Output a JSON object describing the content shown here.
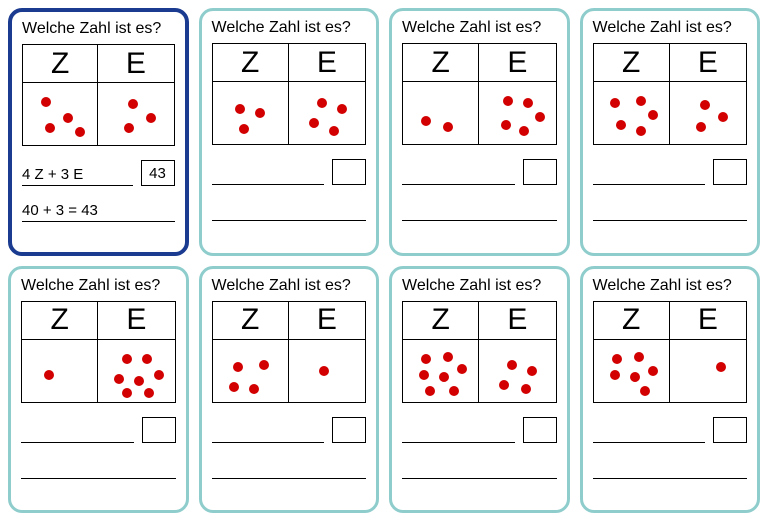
{
  "title": "Welche Zahl ist es?",
  "headers": {
    "tens": "Z",
    "ones": "E"
  },
  "dot_color": "#d20000",
  "border_teal": "#8fcdcd",
  "border_blue": "#1a3b8f",
  "cards": [
    {
      "highlight": true,
      "tens_dots": [
        [
          18,
          14
        ],
        [
          40,
          30
        ],
        [
          22,
          40
        ],
        [
          52,
          44
        ]
      ],
      "ones_dots": [
        [
          30,
          16
        ],
        [
          48,
          30
        ],
        [
          26,
          40
        ]
      ],
      "answer_text": "4 Z + 3 E",
      "answer_box": "43",
      "equation": "40 + 3 = 43"
    },
    {
      "highlight": false,
      "tens_dots": [
        [
          22,
          22
        ],
        [
          42,
          26
        ],
        [
          26,
          42
        ]
      ],
      "ones_dots": [
        [
          28,
          16
        ],
        [
          48,
          22
        ],
        [
          20,
          36
        ],
        [
          40,
          44
        ]
      ],
      "answer_text": "",
      "answer_box": "",
      "equation": ""
    },
    {
      "highlight": false,
      "tens_dots": [
        [
          18,
          34
        ],
        [
          40,
          40
        ]
      ],
      "ones_dots": [
        [
          24,
          14
        ],
        [
          44,
          16
        ],
        [
          56,
          30
        ],
        [
          22,
          38
        ],
        [
          40,
          44
        ]
      ],
      "answer_text": "",
      "answer_box": "",
      "equation": ""
    },
    {
      "highlight": false,
      "tens_dots": [
        [
          16,
          16
        ],
        [
          42,
          14
        ],
        [
          54,
          28
        ],
        [
          22,
          38
        ],
        [
          42,
          44
        ]
      ],
      "ones_dots": [
        [
          30,
          18
        ],
        [
          48,
          30
        ],
        [
          26,
          40
        ]
      ],
      "answer_text": "",
      "answer_box": "",
      "equation": ""
    },
    {
      "highlight": false,
      "tens_dots": [
        [
          22,
          30
        ]
      ],
      "ones_dots": [
        [
          24,
          14
        ],
        [
          44,
          14
        ],
        [
          56,
          30
        ],
        [
          16,
          34
        ],
        [
          36,
          36
        ],
        [
          24,
          48
        ],
        [
          46,
          48
        ]
      ],
      "answer_text": "",
      "answer_box": "",
      "equation": ""
    },
    {
      "highlight": false,
      "tens_dots": [
        [
          20,
          22
        ],
        [
          46,
          20
        ],
        [
          16,
          42
        ],
        [
          36,
          44
        ]
      ],
      "ones_dots": [
        [
          30,
          26
        ]
      ],
      "answer_text": "",
      "answer_box": "",
      "equation": ""
    },
    {
      "highlight": false,
      "tens_dots": [
        [
          18,
          14
        ],
        [
          40,
          12
        ],
        [
          54,
          24
        ],
        [
          16,
          30
        ],
        [
          36,
          32
        ],
        [
          22,
          46
        ],
        [
          46,
          46
        ]
      ],
      "ones_dots": [
        [
          28,
          20
        ],
        [
          48,
          26
        ],
        [
          20,
          40
        ],
        [
          42,
          44
        ]
      ],
      "answer_text": "",
      "answer_box": "",
      "equation": ""
    },
    {
      "highlight": false,
      "tens_dots": [
        [
          18,
          14
        ],
        [
          40,
          12
        ],
        [
          54,
          26
        ],
        [
          16,
          30
        ],
        [
          36,
          32
        ],
        [
          46,
          46
        ]
      ],
      "ones_dots": [
        [
          46,
          22
        ]
      ],
      "answer_text": "",
      "answer_box": "",
      "equation": ""
    }
  ]
}
